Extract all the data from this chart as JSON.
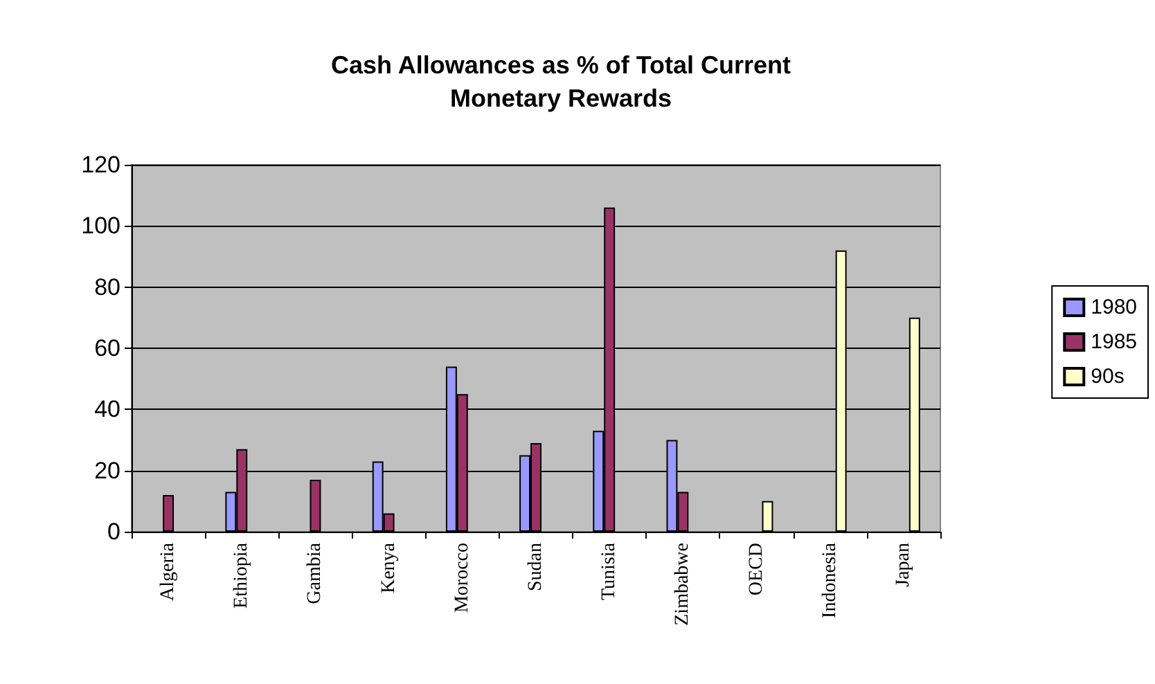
{
  "chart_data": {
    "type": "bar",
    "title": "Cash Allowances as % of Total Current\nMonetary Rewards",
    "categories": [
      "Algeria",
      "Ethiopia",
      "Gambia",
      "Kenya",
      "Morocco",
      "Sudan",
      "Tunisia",
      "Zimbabwe",
      "OECD",
      "Indonesia",
      "Japan"
    ],
    "series": [
      {
        "name": "1980",
        "color": "#9999ff",
        "values": [
          null,
          13,
          null,
          23,
          54,
          25,
          33,
          30,
          null,
          null,
          null
        ]
      },
      {
        "name": "1985",
        "color": "#993366",
        "values": [
          12,
          27,
          17,
          6,
          45,
          29,
          106,
          13,
          null,
          null,
          null
        ]
      },
      {
        "name": "90s",
        "color": "#ffffcc",
        "values": [
          null,
          null,
          null,
          null,
          null,
          null,
          null,
          null,
          10,
          92,
          70
        ]
      }
    ],
    "ylim": [
      0,
      120
    ],
    "yticks": [
      0,
      20,
      40,
      60,
      80,
      100,
      120
    ],
    "grid": "y",
    "legend": "right"
  }
}
